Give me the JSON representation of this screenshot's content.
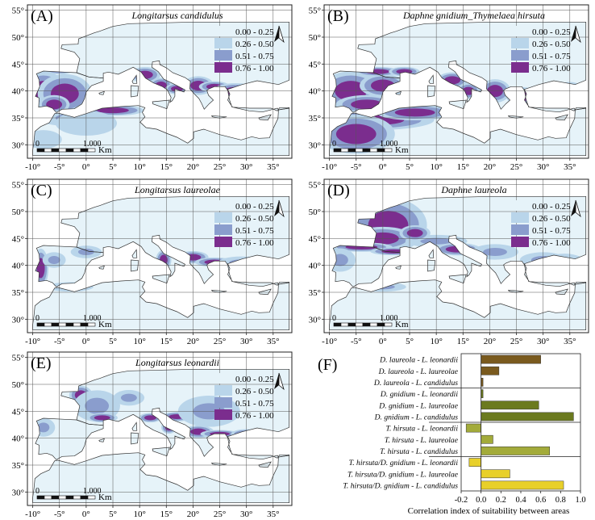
{
  "colors": {
    "sea": "#ffffff",
    "land_base": "#e6f3f9",
    "class_colors": [
      "#e6f3f9",
      "#b9d5ea",
      "#8a9dcd",
      "#7b2d8e"
    ],
    "coast": "#333333",
    "grid": "#555555",
    "bar_colors": [
      "#7a5a1e",
      "#7a5a1e",
      "#7a5a1e",
      "#6b7a1f",
      "#6b7a1f",
      "#6b7a1f",
      "#a3ab3a",
      "#a3ab3a",
      "#a3ab3a",
      "#e8d02a",
      "#e8d02a",
      "#e8d02a"
    ]
  },
  "legend_classes": [
    "0.00 - 0.25",
    "0.26 - 0.50",
    "0.51 - 0.75",
    "0.76 - 1.00"
  ],
  "lat_ticks": [
    "55°",
    "50°",
    "45°",
    "40°",
    "35°",
    "30°"
  ],
  "lon_ticks": [
    "-10°",
    "-5°",
    "0°",
    "5°",
    "10°",
    "15°",
    "20°",
    "25°",
    "30°",
    "35°"
  ],
  "scale_bar": {
    "zero": "0",
    "distance": "1.000",
    "unit": "Km"
  },
  "north_icon": "north-arrow-icon",
  "maps": [
    {
      "letter": "(A)",
      "title": "Longitarsus candidulus",
      "high_suitability_density": 0.45
    },
    {
      "letter": "(B)",
      "title": "Daphne gnidium_Thymelaea hirsuta",
      "high_suitability_density": 0.8
    },
    {
      "letter": "(C)",
      "title": "Longitarsus laureolae",
      "high_suitability_density": 0.2
    },
    {
      "letter": "(D)",
      "title": "Daphne laureola",
      "high_suitability_density": 0.5
    },
    {
      "letter": "(E)",
      "title": "Longitarsus leonardii",
      "high_suitability_density": 0.35
    }
  ],
  "chart_data": {
    "type": "bar",
    "panel_letter": "(F)",
    "orientation": "horizontal",
    "categories": [
      "D. laureola - L. leonardii",
      "D. laureola - L. laureolae",
      "D. laureola - L. candidulus",
      "D. gnidium - L. leonardii",
      "D. gnidium - L. laureolae",
      "D. gnidium - L. candidulus",
      "T. hirsuta - L. leonardii",
      "T. hirsuta - L. laureolae",
      "T. hirsuta - L. candidulus",
      "T. hirsuta/D. gnidium - L. leonardii",
      "T. hirsuta/D. gnidium - L. laureolae",
      "T. hirsuta/D. gnidium - L. candidulus"
    ],
    "values": [
      0.6,
      0.18,
      0.02,
      0.02,
      0.58,
      0.93,
      -0.15,
      0.12,
      0.69,
      -0.12,
      0.29,
      0.83
    ],
    "xlim": [
      -0.2,
      1.0
    ],
    "x_ticks": [
      "-0.2",
      "0.0",
      "0.2",
      "0.4",
      "0.6",
      "0.8",
      "1.0"
    ],
    "xlabel": "Correlation index of suitability between areas",
    "ylabel": ""
  }
}
